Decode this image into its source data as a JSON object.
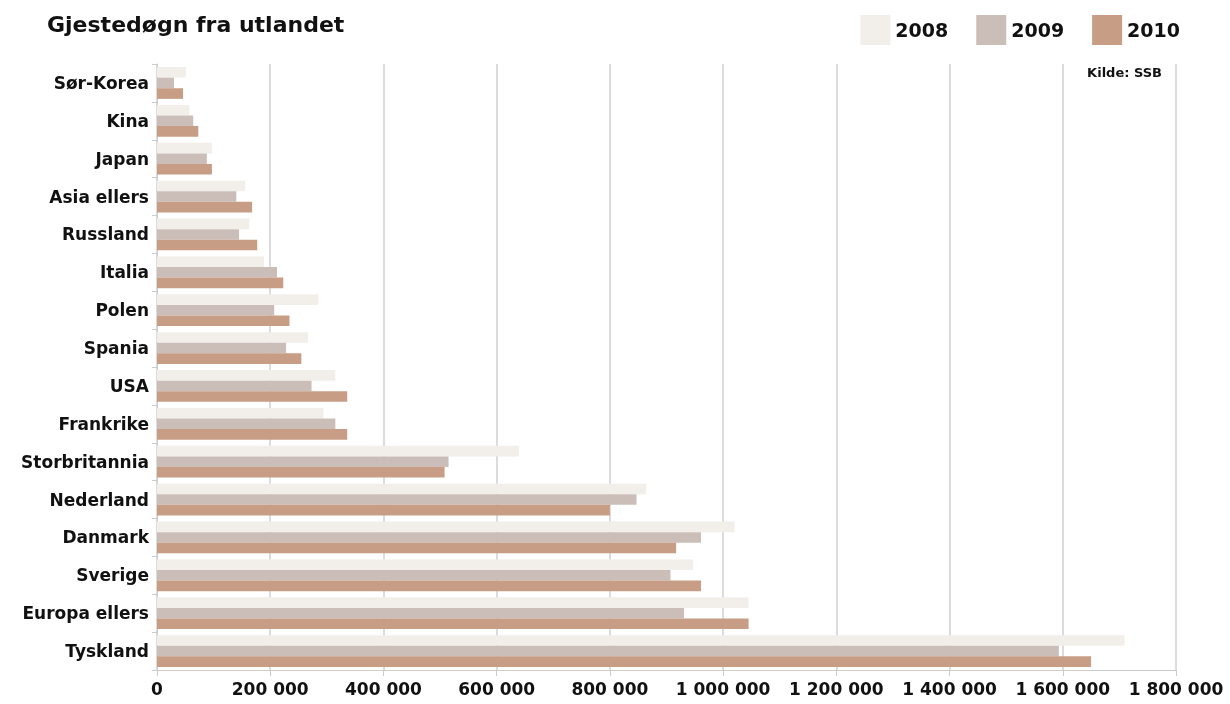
{
  "chart_data": {
    "type": "bar",
    "orientation": "horizontal",
    "title": "Gjestedøgn fra utlandet",
    "annotations": [
      "Kilde: SSB"
    ],
    "categories": [
      "Sør-Korea",
      "Kina",
      "Japan",
      "Asia ellers",
      "Russland",
      "Italia",
      "Polen",
      "Spania",
      "USA",
      "Frankrike",
      "Storbritannia",
      "Nederland",
      "Danmark",
      "Sverige",
      "Europa ellers",
      "Tyskland"
    ],
    "series": [
      {
        "name": "2008",
        "color": "#f2eeea",
        "values": [
          51000,
          57000,
          97000,
          156000,
          163000,
          189000,
          285000,
          267000,
          315000,
          294000,
          639000,
          864000,
          1020000,
          947000,
          1045000,
          1709000
        ]
      },
      {
        "name": "2009",
        "color": "#cbbeb8",
        "values": [
          30000,
          64000,
          88000,
          140000,
          145000,
          212000,
          207000,
          228000,
          273000,
          315000,
          515000,
          847000,
          961000,
          907000,
          931000,
          1593000
        ]
      },
      {
        "name": "2010",
        "color": "#c89d85",
        "values": [
          46000,
          73000,
          97000,
          168000,
          177000,
          223000,
          234000,
          255000,
          336000,
          336000,
          508000,
          800000,
          917000,
          961000,
          1045000,
          1650000
        ]
      }
    ],
    "xlim": [
      0,
      1800000
    ],
    "xticks": [
      0,
      {
        "value": 200000,
        "label": "200 000"
      },
      {
        "value": 400000,
        "label": "400 000"
      },
      {
        "value": 600000,
        "label": "600 000"
      },
      {
        "value": 800000,
        "label": "800 000"
      },
      {
        "value": 1000000,
        "label": "1 000 000"
      },
      {
        "value": 1200000,
        "label": "1 200 000"
      },
      {
        "value": 1400000,
        "label": "1 400 000"
      },
      {
        "value": 1600000,
        "label": "1 600 000"
      },
      {
        "value": 1800000,
        "label": "1 800 000"
      }
    ],
    "grid": "x",
    "legend": "top right"
  }
}
